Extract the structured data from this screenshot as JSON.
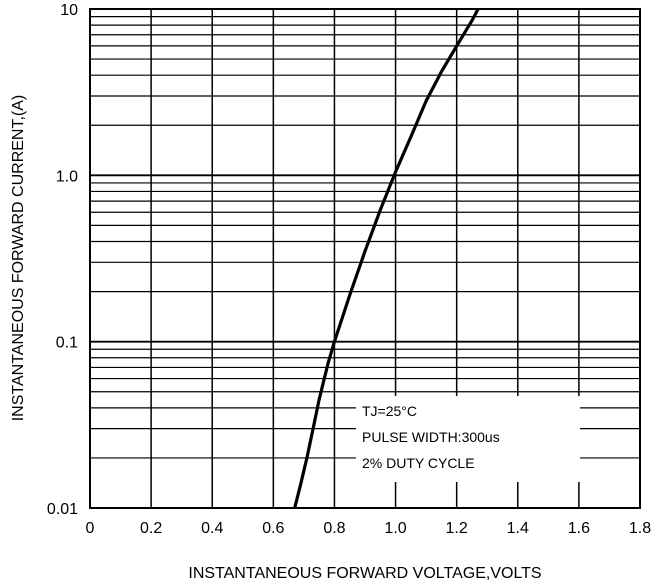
{
  "chart_data": {
    "type": "line",
    "title": "",
    "xlabel": "INSTANTANEOUS FORWARD VOLTAGE,VOLTS",
    "ylabel": "INSTANTANEOUS FORWARD CURRENT,(A)",
    "x_scale": "linear",
    "y_scale": "log",
    "xlim": [
      0,
      1.8
    ],
    "ylim": [
      0.01,
      10
    ],
    "x_ticks": [
      "0",
      "0.2",
      "0.4",
      "0.6",
      "0.8",
      "1.0",
      "1.2",
      "1.4",
      "1.6",
      "1.8"
    ],
    "x_tick_values": [
      0,
      0.2,
      0.4,
      0.6,
      0.8,
      1.0,
      1.2,
      1.4,
      1.6,
      1.8
    ],
    "y_ticks": [
      "0.01",
      "0.1",
      "1.0",
      "10"
    ],
    "y_tick_values": [
      0.01,
      0.1,
      1.0,
      10
    ],
    "grid": true,
    "series": [
      {
        "x": [
          0.67,
          0.69,
          0.71,
          0.73,
          0.75,
          0.78,
          0.8,
          0.85,
          0.9,
          0.95,
          1.0,
          1.05,
          1.1,
          1.15,
          1.2,
          1.25,
          1.27
        ],
        "y": [
          0.01,
          0.014,
          0.02,
          0.03,
          0.045,
          0.075,
          0.1,
          0.19,
          0.35,
          0.62,
          1.05,
          1.7,
          2.8,
          4.2,
          6.0,
          8.5,
          10
        ]
      }
    ],
    "annotations": [
      "TJ=25°C",
      "PULSE WIDTH:300us",
      "2% DUTY CYCLE"
    ]
  }
}
